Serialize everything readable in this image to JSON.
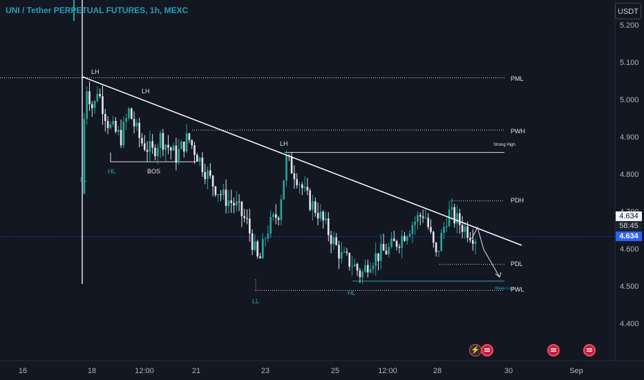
{
  "header": {
    "title": "UNI / Tether PERPETUAL FUTURES, 1h, MEXC"
  },
  "toolbar": {
    "currency_label": "USDT"
  },
  "price_scale": {
    "ticks": [
      "5.200",
      "5.100",
      "5.000",
      "4.900",
      "4.800",
      "4.700",
      "4.600",
      "4.500",
      "4.400"
    ],
    "partially_hidden_tick": "4.700",
    "last_price": "4.634",
    "countdown": "58:45",
    "axis_price": "4.634"
  },
  "time_axis": {
    "labels": [
      "16",
      "18",
      "12:00",
      "21",
      "23",
      "25",
      "12:00",
      "28",
      "30",
      "Sep"
    ]
  },
  "colors": {
    "background": "#131722",
    "up": "#26a69a",
    "down": "#e0e3eb",
    "accent": "#2962ff",
    "title": "#2a9db5"
  },
  "chart_data": {
    "type": "candlestick",
    "title": "UNI / Tether PERPETUAL FUTURES, 1h, MEXC",
    "ylim": [
      4.32,
      5.32
    ],
    "x_ticks": [
      "16",
      "18",
      "12:00",
      "21",
      "23",
      "25",
      "12:00",
      "28",
      "30",
      "Sep"
    ],
    "y_ticks": [
      5.2,
      5.1,
      5.0,
      4.9,
      4.8,
      4.7,
      4.6,
      4.5,
      4.4
    ],
    "last_price": 4.634,
    "close_path": [
      [
        0.0,
        4.75
      ],
      [
        0.01,
        5.05
      ],
      [
        0.03,
        4.97
      ],
      [
        0.04,
        5.03
      ],
      [
        0.07,
        4.93
      ],
      [
        0.1,
        4.9
      ],
      [
        0.12,
        4.97
      ],
      [
        0.15,
        4.89
      ],
      [
        0.18,
        4.86
      ],
      [
        0.2,
        4.9
      ],
      [
        0.24,
        4.85
      ],
      [
        0.27,
        4.9
      ],
      [
        0.3,
        4.84
      ],
      [
        0.33,
        4.78
      ],
      [
        0.36,
        4.74
      ],
      [
        0.39,
        4.72
      ],
      [
        0.42,
        4.67
      ],
      [
        0.45,
        4.56
      ],
      [
        0.47,
        4.65
      ],
      [
        0.5,
        4.7
      ],
      [
        0.52,
        4.84
      ],
      [
        0.55,
        4.79
      ],
      [
        0.57,
        4.74
      ],
      [
        0.6,
        4.7
      ],
      [
        0.63,
        4.64
      ],
      [
        0.66,
        4.58
      ],
      [
        0.69,
        4.56
      ],
      [
        0.71,
        4.53
      ],
      [
        0.73,
        4.57
      ],
      [
        0.76,
        4.59
      ],
      [
        0.78,
        4.6
      ],
      [
        0.81,
        4.63
      ],
      [
        0.84,
        4.67
      ],
      [
        0.87,
        4.7
      ],
      [
        0.9,
        4.58
      ],
      [
        0.93,
        4.7
      ],
      [
        0.95,
        4.68
      ],
      [
        0.97,
        4.66
      ],
      [
        1.0,
        4.634
      ]
    ],
    "levels": [
      {
        "label": "PML",
        "value": 5.06
      },
      {
        "label": "PWH",
        "value": 4.92
      },
      {
        "label": "Strong High",
        "value": 4.86
      },
      {
        "label": "PDH",
        "value": 4.73
      },
      {
        "label": "PDL",
        "value": 4.56
      },
      {
        "label": "Weak Low",
        "value": 4.515
      },
      {
        "label": "PWL",
        "value": 4.49
      }
    ],
    "annotations": [
      "LH",
      "LH",
      "LH",
      "HL",
      "BOS",
      "LL",
      "LL",
      "HL",
      "PML",
      "PWH",
      "Strong High",
      "PDH",
      "PDL",
      "Weak Low",
      "PWL"
    ]
  },
  "annotations": {
    "lh1": "LH",
    "lh2": "LH",
    "lh3": "LH",
    "hl1": "HL",
    "bos": "BOS",
    "ll1": "LL",
    "ll2": "LL",
    "hl2": "HL",
    "pml": "PML",
    "pwh": "PWH",
    "strong_high": "Strong High",
    "pdh": "PDH",
    "pdl": "PDL",
    "weak_low": "Weak Low",
    "pwl": "PWL"
  },
  "events": [
    {
      "icon": "lightning-icon"
    },
    {
      "icon": "us-flag-icon"
    },
    {
      "icon": "us-flag-icon"
    },
    {
      "icon": "us-flag-icon"
    }
  ]
}
